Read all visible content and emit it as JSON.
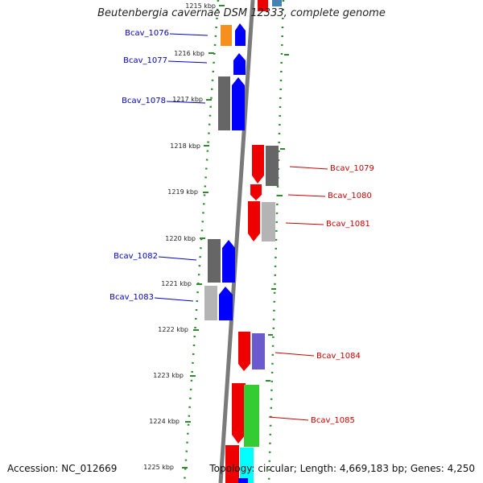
{
  "title": "Beutenbergia cavernae DSM 12333, complete genome",
  "footer": {
    "accession": "Accession: NC_012669",
    "topology": "Topology: circular; Length: 4,669,183 bp; Genes: 4,250"
  },
  "colors": {
    "backbone": "#7a7a7a",
    "dots": "#2e8b2e",
    "left_label": "#0000cc",
    "right_label": "#cc0000",
    "orange": "#f5901e",
    "blue": "#0000ff",
    "dark_gray": "#666666",
    "light_gray": "#b4b4b4",
    "red": "#ee0000",
    "purple": "#6a5acd",
    "green": "#33cc33",
    "cyan": "#00ffff",
    "steel": "#4682b4"
  },
  "scale": {
    "ticks": [
      "1215 kbp",
      "1216 kbp",
      "1217 kbp",
      "1218 kbp",
      "1219 kbp",
      "1220 kbp",
      "1221 kbp",
      "1222 kbp",
      "1223 kbp",
      "1224 kbp",
      "1225 kbp"
    ]
  },
  "labels": [
    {
      "name": "Bcav_1076",
      "side": "left"
    },
    {
      "name": "Bcav_1077",
      "side": "left"
    },
    {
      "name": "Bcav_1078",
      "side": "left"
    },
    {
      "name": "Bcav_1079",
      "side": "right"
    },
    {
      "name": "Bcav_1080",
      "side": "right"
    },
    {
      "name": "Bcav_1081",
      "side": "right"
    },
    {
      "name": "Bcav_1082",
      "side": "left"
    },
    {
      "name": "Bcav_1083",
      "side": "left"
    },
    {
      "name": "Bcav_1084",
      "side": "right"
    },
    {
      "name": "Bcav_1085",
      "side": "right"
    }
  ]
}
